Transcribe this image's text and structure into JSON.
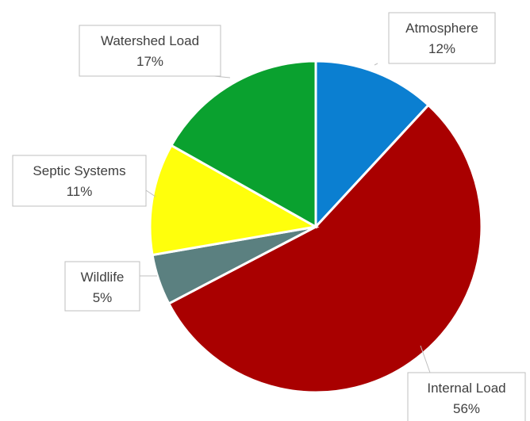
{
  "chart_data": {
    "type": "pie",
    "start_angle_deg": 0,
    "direction": "clockwise",
    "slices": [
      {
        "label": "Atmosphere",
        "value": 12,
        "value_label": "12%",
        "color": "#0b7fd1"
      },
      {
        "label": "Internal Load",
        "value": 56,
        "value_label": "56%",
        "color": "#a90000"
      },
      {
        "label": "Wildlife",
        "value": 5,
        "value_label": "5%",
        "color": "#5b8080"
      },
      {
        "label": "Septic Systems",
        "value": 11,
        "value_label": "11%",
        "color": "#ffff0c"
      },
      {
        "label": "Watershed Load",
        "value": 17,
        "value_label": "17%",
        "color": "#0aa12f"
      }
    ],
    "label_style": "callout boxes with leader lines",
    "legend": "none"
  }
}
